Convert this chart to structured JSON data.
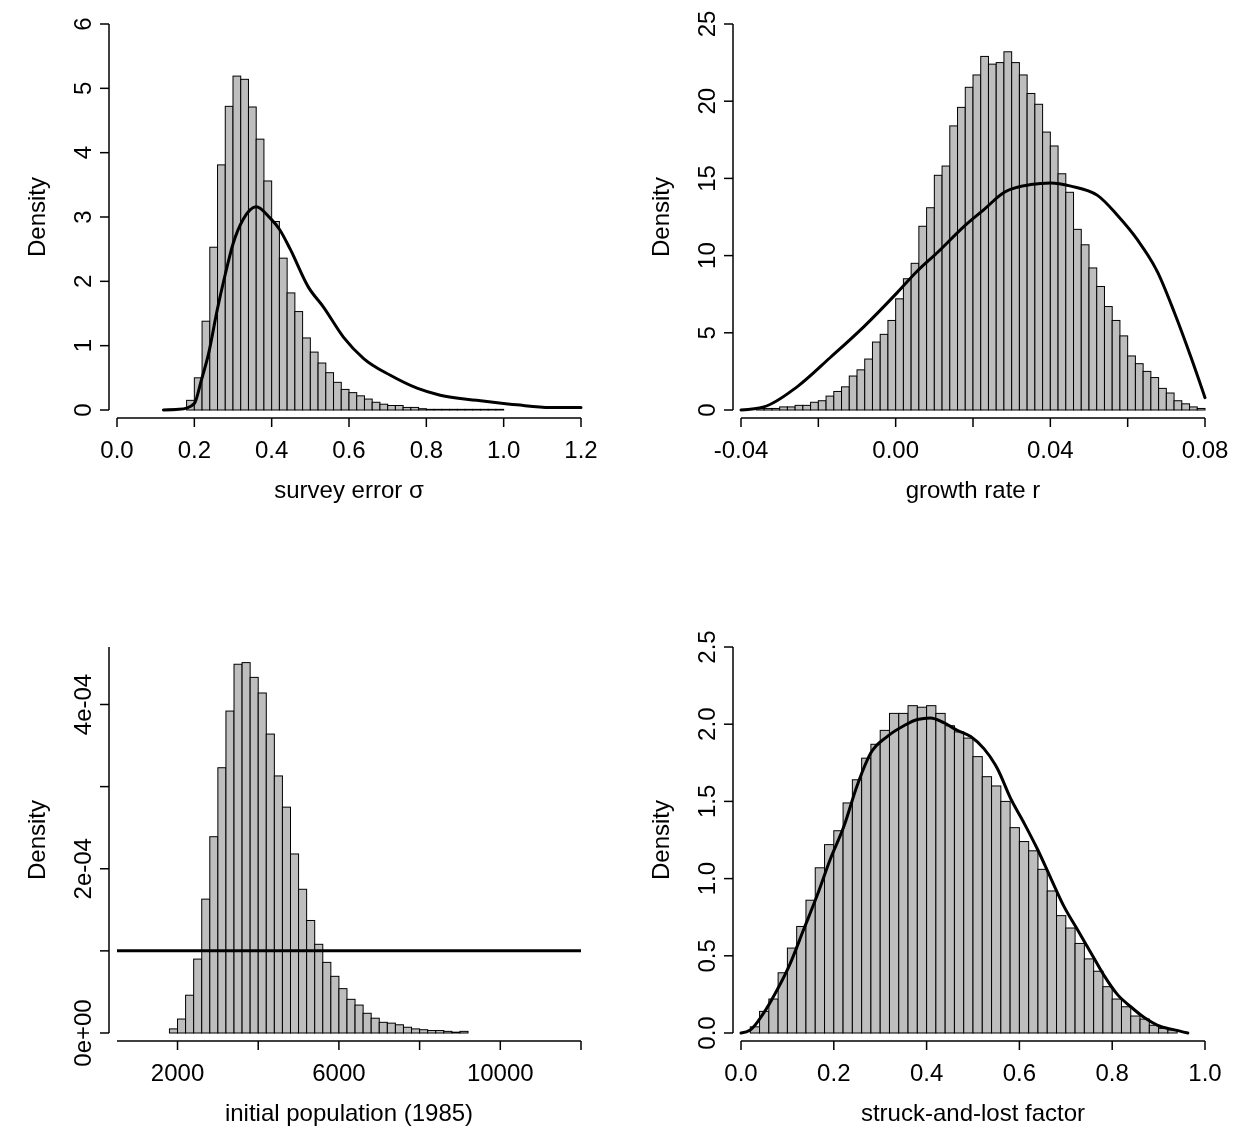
{
  "chart_data": [
    {
      "type": "histogram",
      "xlabel": "survey error σ",
      "ylabel": "Density",
      "color": "#bebebe",
      "xlim": [
        0,
        1.2
      ],
      "ylim": [
        0,
        6
      ],
      "xticks": [
        {
          "value": 0,
          "label": "0.0"
        },
        {
          "value": 0.2,
          "label": "0.2"
        },
        {
          "value": 0.4,
          "label": "0.4"
        },
        {
          "value": 0.6,
          "label": "0.6"
        },
        {
          "value": 0.8,
          "label": "0.8"
        },
        {
          "value": 1,
          "label": "1.0"
        },
        {
          "value": 1.2,
          "label": "1.2"
        }
      ],
      "yticks": [
        0,
        1,
        2,
        3,
        4,
        5,
        6
      ],
      "bins": [
        0.12,
        0.14,
        0.16,
        0.18,
        0.2,
        0.22,
        0.24,
        0.26,
        0.28,
        0.3,
        0.32,
        0.34,
        0.36,
        0.38,
        0.4,
        0.42,
        0.44,
        0.46,
        0.48,
        0.5,
        0.52,
        0.54,
        0.56,
        0.58,
        0.6,
        0.62,
        0.64,
        0.66,
        0.68,
        0.7,
        0.72,
        0.74,
        0.76,
        0.78,
        0.8,
        0.82,
        0.84,
        0.86,
        0.88,
        0.9,
        0.92,
        0.94,
        0.96,
        0.98,
        1.0,
        1.02,
        1.04,
        1.06,
        1.08,
        1.1,
        1.12,
        1.14,
        1.16,
        1.18,
        1.2
      ],
      "values": [
        0,
        null,
        null,
        0.15,
        0.5,
        1.38,
        2.53,
        3.81,
        4.72,
        5.19,
        5.14,
        4.71,
        4.21,
        3.56,
        2.93,
        2.36,
        1.82,
        1.53,
        1.12,
        0.9,
        0.73,
        0.58,
        0.43,
        0.32,
        0.27,
        0.22,
        0.17,
        0.12,
        0.09,
        0.07,
        0.07,
        0.04,
        0.04,
        0.02,
        0.01,
        0.01,
        0.01,
        0.01,
        0.01,
        0.01,
        0.01,
        0.01,
        0.01,
        0.01,
        0,
        0,
        0,
        0,
        0,
        0,
        0,
        0,
        0,
        0
      ],
      "series": [
        {
          "type": "line",
          "color": "#000000",
          "x": [
            0.12,
            0.16,
            0.18,
            0.2,
            0.218,
            0.237,
            0.259,
            0.28,
            0.3,
            0.326,
            0.36,
            0.395,
            0.42,
            0.448,
            0.495,
            0.534,
            0.586,
            0.638,
            0.707,
            0.776,
            0.836,
            0.93,
            1.034,
            1.12,
            1.2
          ],
          "values": [
            0,
            0.01,
            0.03,
            0.1,
            0.46,
            0.88,
            1.55,
            2.11,
            2.58,
            2.96,
            3.16,
            2.99,
            2.81,
            2.5,
            1.91,
            1.6,
            1.13,
            0.8,
            0.54,
            0.34,
            0.23,
            0.15,
            0.08,
            0.04,
            0.04
          ]
        }
      ]
    },
    {
      "type": "histogram",
      "xlabel": "growth rate r",
      "ylabel": "Density",
      "color": "#bebebe",
      "xlim": [
        -0.04,
        0.08
      ],
      "ylim": [
        0,
        25
      ],
      "xticks": [
        {
          "value": -0.04,
          "label": "-0.04"
        },
        {
          "value": -0.02,
          "label": null
        },
        {
          "value": 0,
          "label": "0.00"
        },
        {
          "value": 0.02,
          "label": null
        },
        {
          "value": 0.04,
          "label": "0.04"
        },
        {
          "value": 0.06,
          "label": null
        },
        {
          "value": 0.08,
          "label": "0.08"
        }
      ],
      "yticks": [
        0,
        5,
        10,
        15,
        20,
        25
      ],
      "bins": [
        -0.04,
        -0.038,
        -0.036,
        -0.034,
        -0.032,
        -0.03,
        -0.028,
        -0.026,
        -0.024,
        -0.022,
        -0.02,
        -0.018,
        -0.016,
        -0.014,
        -0.012,
        -0.01,
        -0.008,
        -0.006,
        -0.004,
        -0.002,
        0,
        0.002,
        0.004,
        0.006,
        0.008,
        0.01,
        0.012,
        0.014,
        0.016,
        0.018,
        0.02,
        0.022,
        0.024,
        0.026,
        0.028,
        0.03,
        0.032,
        0.034,
        0.036,
        0.038,
        0.04,
        0.042,
        0.044,
        0.046,
        0.048,
        0.05,
        0.052,
        0.054,
        0.056,
        0.058,
        0.06,
        0.062,
        0.064,
        0.066,
        0.068,
        0.07,
        0.072,
        0.074,
        0.076,
        0.078,
        0.08
      ],
      "values": [
        0.0,
        0.0,
        0.1,
        0.1,
        0.1,
        0.2,
        0.2,
        0.3,
        0.3,
        0.5,
        0.6,
        0.9,
        1.2,
        1.5,
        2.2,
        2.6,
        3.3,
        4.4,
        4.9,
        5.8,
        7.2,
        8.5,
        9.5,
        11.9,
        13.1,
        15.2,
        15.8,
        18.4,
        19.6,
        20.9,
        21.7,
        22.9,
        22.4,
        22.5,
        23.2,
        22.5,
        21.7,
        20.5,
        19.8,
        18.0,
        17.1,
        15.3,
        14.1,
        11.7,
        10.7,
        9.2,
        8.0,
        6.7,
        5.8,
        4.8,
        3.5,
        3.0,
        2.5,
        2.1,
        1.4,
        1.1,
        0.6,
        0.4,
        0.2,
        0.1
      ],
      "series": [
        {
          "type": "line",
          "color": "#000000",
          "x": [
            -0.04,
            -0.0341,
            -0.0255,
            -0.0169,
            -0.0082,
            0.0004,
            0.0056,
            0.0108,
            0.0177,
            0.0229,
            0.0281,
            0.0349,
            0.0401,
            0.0453,
            0.0522,
            0.0574,
            0.0626,
            0.0678,
            0.0721,
            0.0764,
            0.08
          ],
          "values": [
            0,
            0.2,
            1.5,
            3.4,
            5.4,
            7.6,
            9.0,
            10.2,
            11.9,
            13.0,
            14.1,
            14.6,
            14.7,
            14.5,
            13.9,
            12.6,
            11.0,
            8.9,
            6.3,
            3.4,
            0.8
          ]
        }
      ]
    },
    {
      "type": "histogram",
      "xlabel": "initial population (1985)",
      "ylabel": "Density",
      "color": "#bebebe",
      "xlim": [
        500,
        12000
      ],
      "ylim": [
        0,
        0.00047
      ],
      "xticks": [
        {
          "value": 2000,
          "label": "2000"
        },
        {
          "value": 4000,
          "label": null
        },
        {
          "value": 6000,
          "label": "6000"
        },
        {
          "value": 8000,
          "label": null
        },
        {
          "value": 10000,
          "label": "10000"
        },
        {
          "value": 12000,
          "label": null
        }
      ],
      "yticks": [
        {
          "value": 0,
          "label": "0e+00"
        },
        {
          "value": 0.0001,
          "label": null
        },
        {
          "value": 0.0002,
          "label": "2e-04"
        },
        {
          "value": 0.0003,
          "label": null
        },
        {
          "value": 0.0004,
          "label": "4e-04"
        }
      ],
      "bins": [
        1800,
        2000,
        2200,
        2400,
        2600,
        2800,
        3000,
        3200,
        3400,
        3600,
        3800,
        4000,
        4200,
        4400,
        4600,
        4800,
        5000,
        5200,
        5400,
        5600,
        5800,
        6000,
        6200,
        6400,
        6600,
        6800,
        7000,
        7200,
        7400,
        7600,
        7800,
        8000,
        8200,
        8400,
        8600,
        8800,
        9000,
        9200
      ],
      "values": [
        5e-06,
        1.7e-05,
        4.6e-05,
        9e-05,
        0.000163,
        0.000239,
        0.000323,
        0.000392,
        0.000449,
        0.000451,
        0.000433,
        0.000414,
        0.000364,
        0.000313,
        0.000275,
        0.000218,
        0.000175,
        0.000137,
        0.000108,
        8.6e-05,
        6.9e-05,
        5.4e-05,
        4.1e-05,
        3.4e-05,
        2.4e-05,
        1.8e-05,
        1.3e-05,
        1.2e-05,
        1e-05,
        7e-06,
        5e-06,
        4e-06,
        3e-06,
        3e-06,
        2e-06,
        1e-06,
        2e-06
      ],
      "ref_lines": [
        {
          "axis": "y",
          "value": 0.0001,
          "color": "#000000"
        }
      ]
    },
    {
      "type": "histogram",
      "xlabel": "struck-and-lost factor",
      "ylabel": "Density",
      "color": "#bebebe",
      "xlim": [
        0,
        1
      ],
      "ylim": [
        0,
        2.5
      ],
      "xticks": [
        {
          "value": 0,
          "label": "0.0"
        },
        {
          "value": 0.2,
          "label": "0.2"
        },
        {
          "value": 0.4,
          "label": "0.4"
        },
        {
          "value": 0.6,
          "label": "0.6"
        },
        {
          "value": 0.8,
          "label": "0.8"
        },
        {
          "value": 1,
          "label": "1.0"
        }
      ],
      "yticks": [
        {
          "value": 0,
          "label": "0.0"
        },
        {
          "value": 0.5,
          "label": "0.5"
        },
        {
          "value": 1,
          "label": "1.0"
        },
        {
          "value": 1.5,
          "label": "1.5"
        },
        {
          "value": 2,
          "label": "2.0"
        },
        {
          "value": 2.5,
          "label": "2.5"
        }
      ],
      "bins": [
        0,
        0.02,
        0.04,
        0.06,
        0.08,
        0.1,
        0.12,
        0.14,
        0.16,
        0.18,
        0.2,
        0.22,
        0.24,
        0.26,
        0.28,
        0.3,
        0.32,
        0.34,
        0.36,
        0.38,
        0.4,
        0.42,
        0.44,
        0.46,
        0.48,
        0.5,
        0.52,
        0.54,
        0.56,
        0.58,
        0.6,
        0.62,
        0.64,
        0.66,
        0.68,
        0.7,
        0.72,
        0.74,
        0.76,
        0.78,
        0.8,
        0.82,
        0.84,
        0.86,
        0.88,
        0.9,
        0.92,
        0.94,
        0.96,
        0.98,
        1.0
      ],
      "values": [
        null,
        0.04,
        0.14,
        0.22,
        0.39,
        0.55,
        0.69,
        0.86,
        1.07,
        1.22,
        1.31,
        1.49,
        1.64,
        1.78,
        1.87,
        1.96,
        2.07,
        2.07,
        2.12,
        2.11,
        2.12,
        2.07,
        1.99,
        1.95,
        1.91,
        1.79,
        1.66,
        1.6,
        1.5,
        1.33,
        1.24,
        1.18,
        1.06,
        0.92,
        0.76,
        0.68,
        0.58,
        0.48,
        0.4,
        0.3,
        0.22,
        0.17,
        0.11,
        0.09,
        0.05,
        0.03,
        0.02,
        null,
        0,
        0
      ],
      "series": [
        {
          "type": "line",
          "color": "#000000",
          "x": [
            0,
            0.02,
            0.049,
            0.078,
            0.106,
            0.135,
            0.164,
            0.193,
            0.222,
            0.25,
            0.279,
            0.315,
            0.351,
            0.38,
            0.408,
            0.437,
            0.466,
            0.495,
            0.524,
            0.553,
            0.581,
            0.61,
            0.639,
            0.668,
            0.696,
            0.725,
            0.754,
            0.783,
            0.811,
            0.84,
            0.869,
            0.898,
            0.934,
            0.963
          ],
          "values": [
            0,
            0.02,
            0.13,
            0.28,
            0.45,
            0.67,
            0.89,
            1.13,
            1.34,
            1.6,
            1.81,
            1.92,
            1.99,
            2.03,
            2.04,
            2.01,
            1.96,
            1.92,
            1.84,
            1.71,
            1.52,
            1.36,
            1.19,
            1.0,
            0.82,
            0.67,
            0.52,
            0.37,
            0.25,
            0.17,
            0.1,
            0.05,
            0.02,
            0.0
          ]
        }
      ]
    }
  ]
}
